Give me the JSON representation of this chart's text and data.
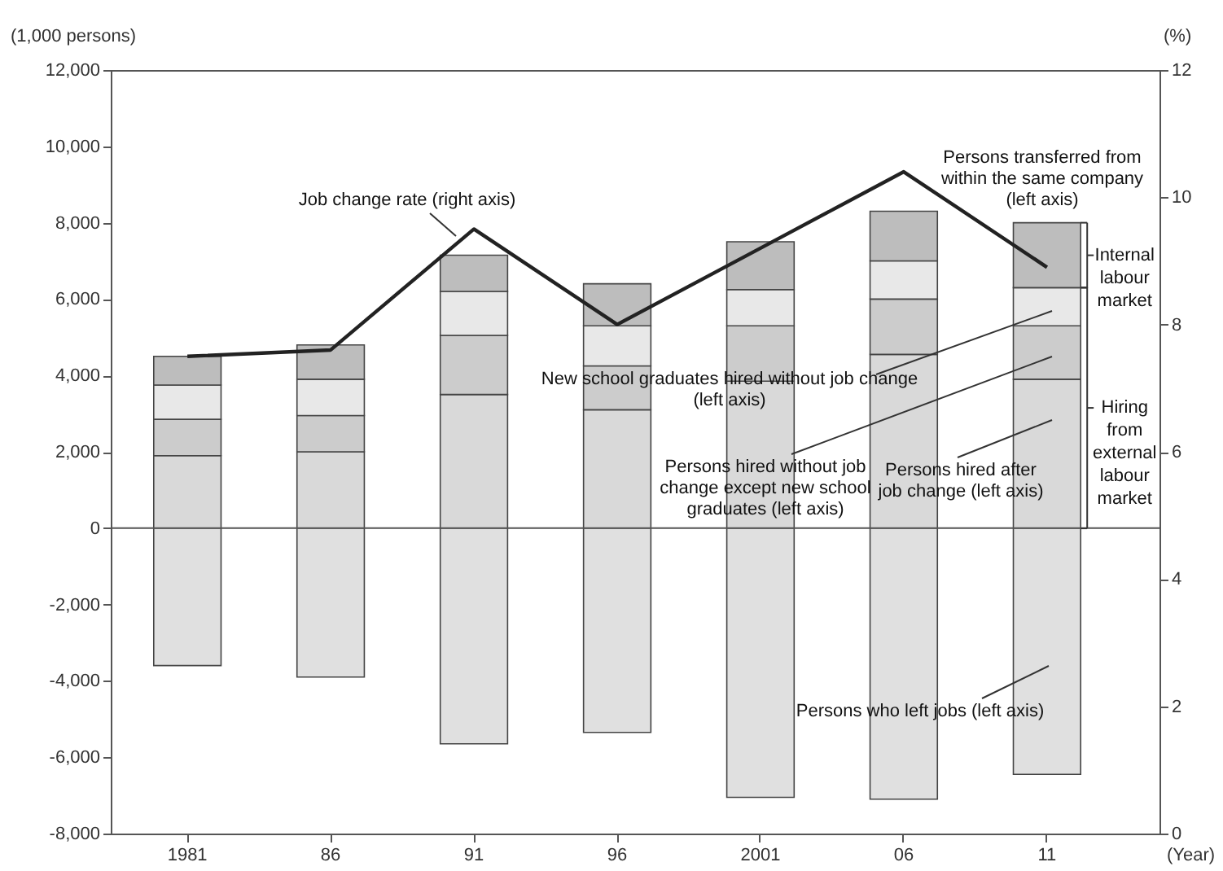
{
  "chart_data": {
    "type": "bar",
    "stacked": true,
    "categories": [
      "1981",
      "86",
      "91",
      "96",
      "2001",
      "06",
      "11"
    ],
    "xlabel": "(Year)",
    "ylabel": "(1,000 persons)",
    "y2label": "(%)",
    "ylim": [
      -8000,
      12000
    ],
    "yticks": [
      {
        "value": -8000,
        "label": "-8,000"
      },
      {
        "value": -6000,
        "label": "-6,000"
      },
      {
        "value": -4000,
        "label": "-4,000"
      },
      {
        "value": -2000,
        "label": "-2,000"
      },
      {
        "value": 0,
        "label": "0"
      },
      {
        "value": 2000,
        "label": "2,000"
      },
      {
        "value": 4000,
        "label": "4,000"
      },
      {
        "value": 6000,
        "label": "6,000"
      },
      {
        "value": 8000,
        "label": "8,000"
      },
      {
        "value": 10000,
        "label": "10,000"
      },
      {
        "value": 12000,
        "label": "12,000"
      }
    ],
    "y2lim": [
      0,
      12
    ],
    "y2ticks": [
      0,
      2,
      4,
      6,
      8,
      10,
      12
    ],
    "grid": false,
    "legend": false,
    "ref_lines": [
      {
        "axis": "y",
        "value": 0,
        "color": "#555555"
      }
    ],
    "annotations": [
      {
        "text": "Internal labour market",
        "x": "11",
        "y": 8000
      },
      {
        "text": "Hiring from external labour market",
        "x": "11",
        "y": 3900
      }
    ],
    "series": [
      {
        "name": "Persons hired after job change (left axis)",
        "color": "#d9d9d9",
        "values": [
          1900,
          2000,
          3500,
          3100,
          3850,
          4550,
          3900
        ]
      },
      {
        "name": "Persons hired without job change except new school graduates (left axis)",
        "color": "#cccccc",
        "values": [
          950,
          950,
          1550,
          1150,
          1450,
          1450,
          1400
        ]
      },
      {
        "name": "New school graduates hired without job change (left axis)",
        "color": "#e8e8e8",
        "values": [
          900,
          950,
          1150,
          1050,
          950,
          1000,
          1000
        ]
      },
      {
        "name": "Persons transferred from within the same company (left axis)",
        "color": "#bdbdbd",
        "values": [
          750,
          900,
          950,
          1100,
          1250,
          1300,
          1700
        ]
      },
      {
        "name": "Persons who left jobs (left axis)",
        "color": "#e0e0e0",
        "values": [
          -3600,
          -3900,
          -5650,
          -5350,
          -7050,
          -7100,
          -6450
        ]
      },
      {
        "name": "Job change rate (right axis)",
        "type": "line",
        "axis": "y2",
        "color": "#222222",
        "marker": "none",
        "line_style": "solid",
        "values": [
          7.5,
          7.6,
          9.5,
          8.0,
          9.2,
          10.4,
          8.9
        ]
      }
    ]
  }
}
